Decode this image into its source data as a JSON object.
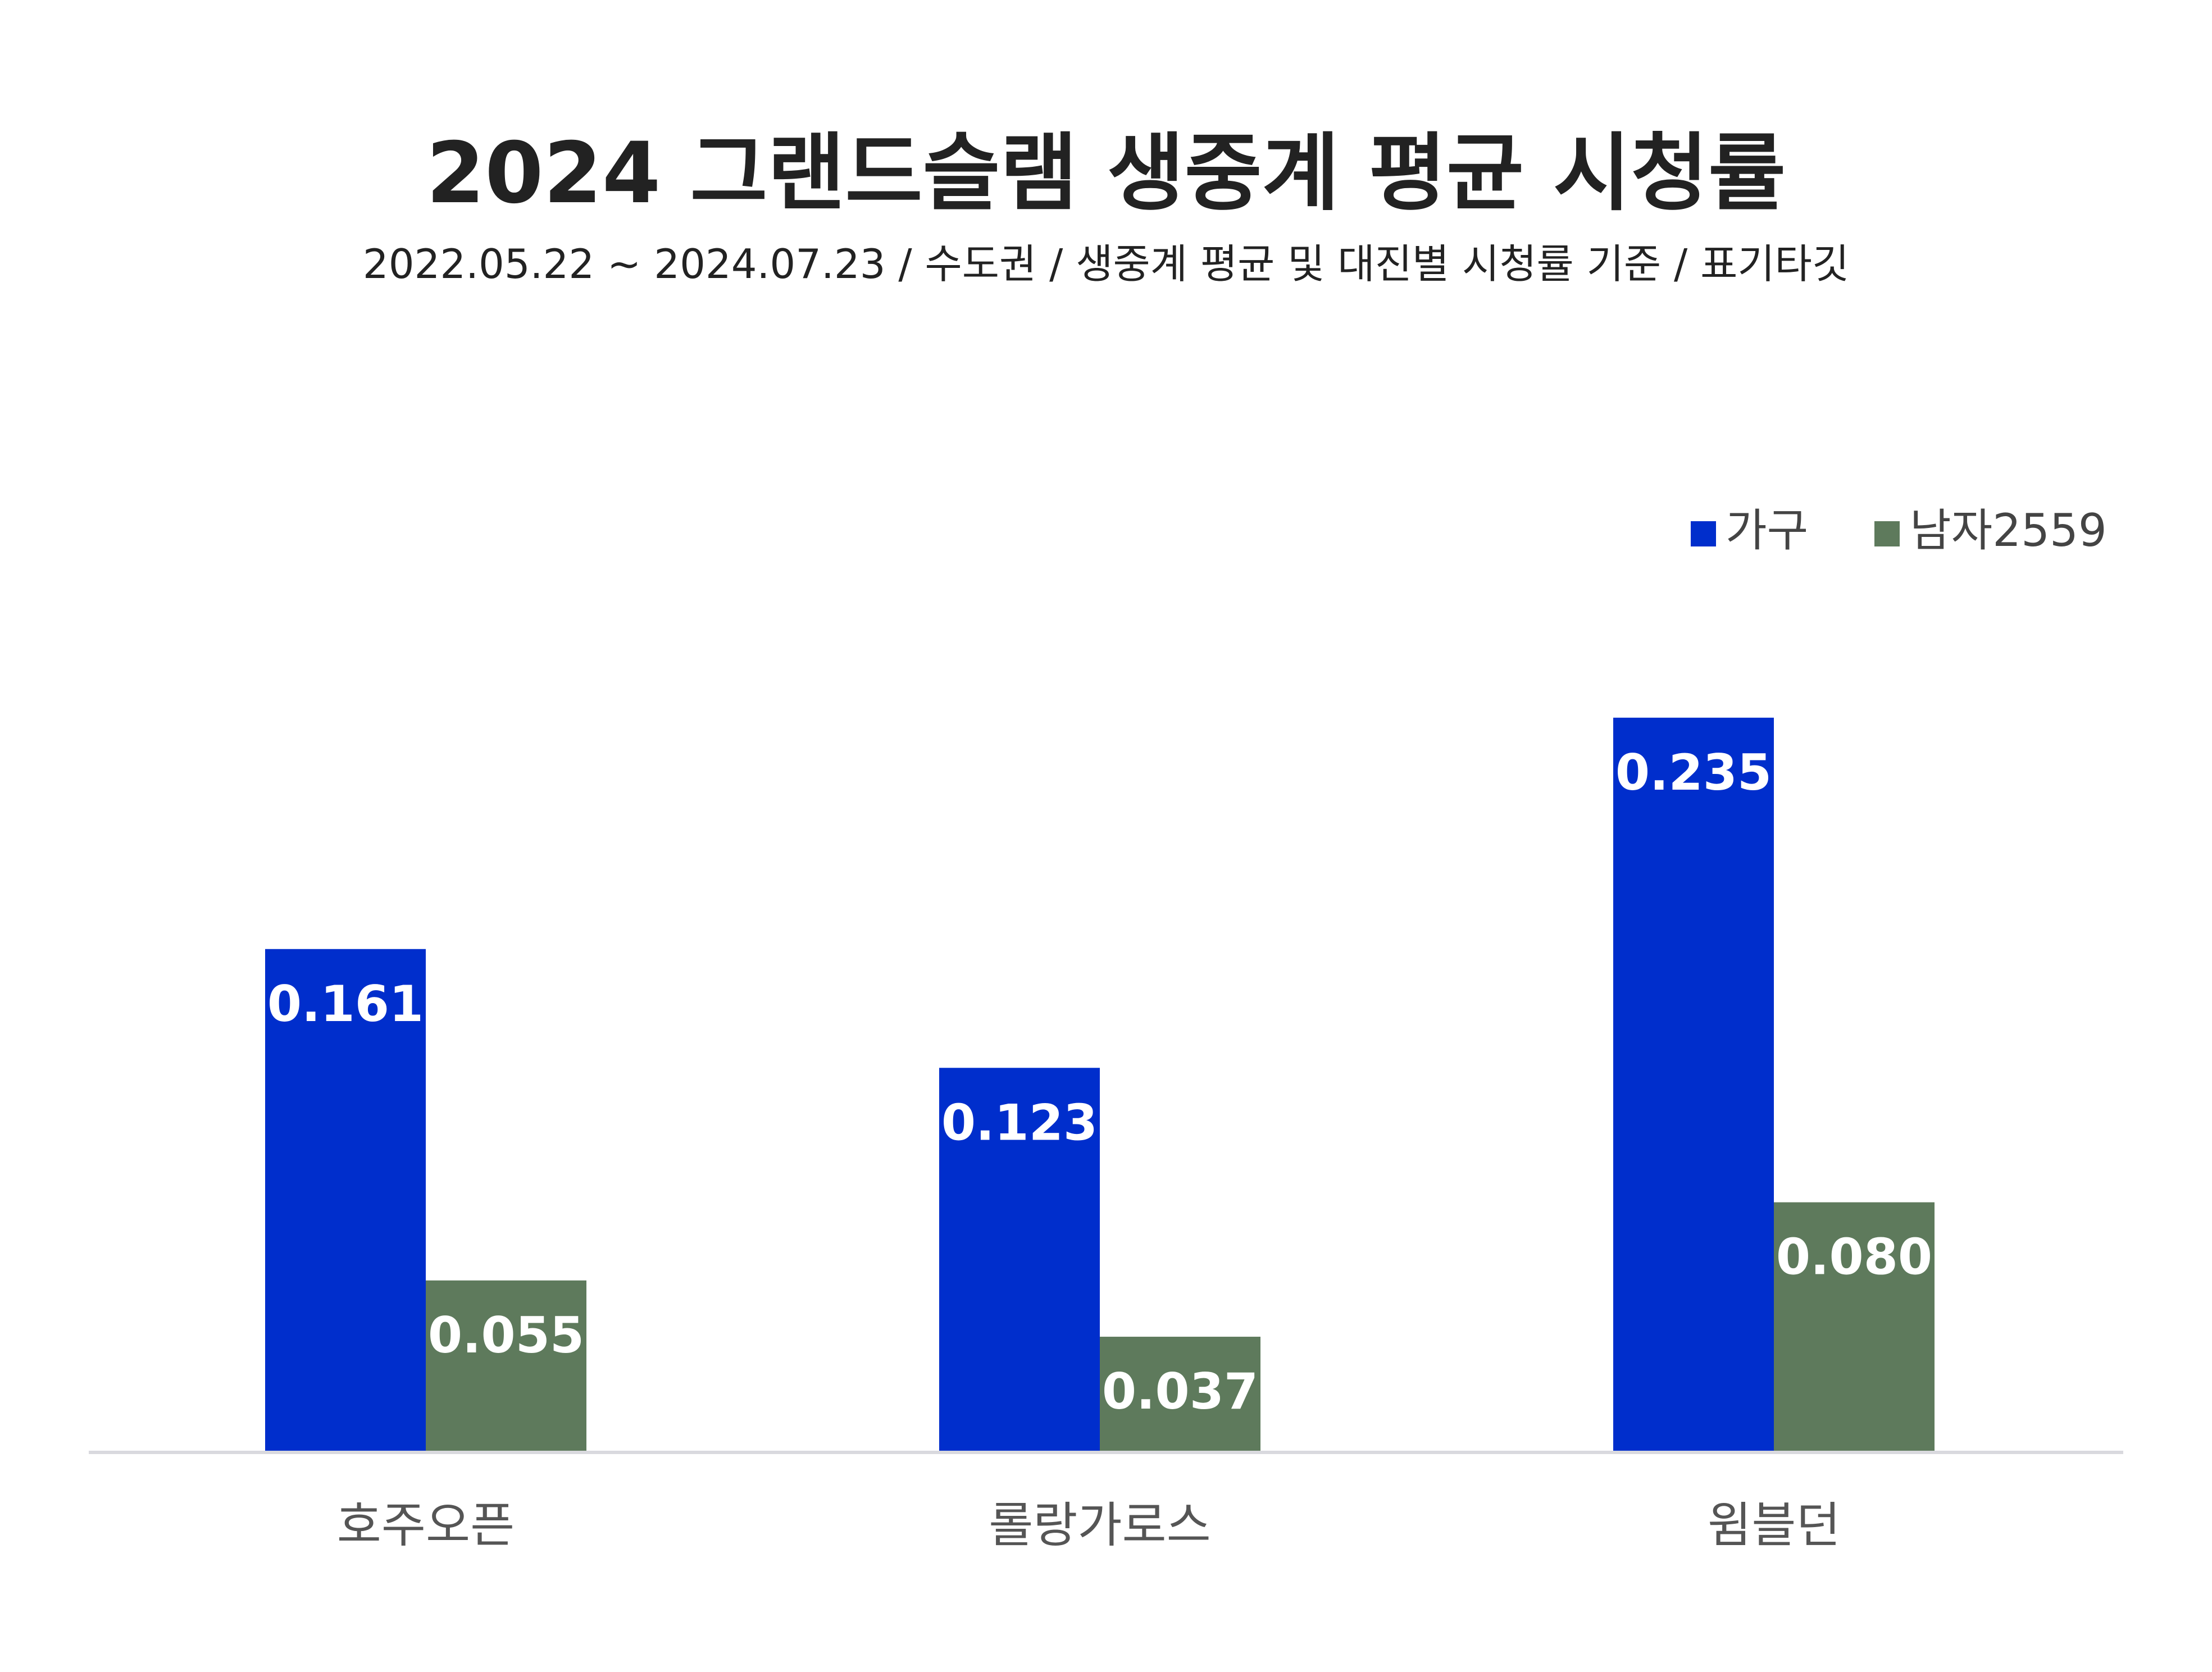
{
  "chart_data": {
    "type": "bar",
    "title": "2024 그랜드슬램 생중계 평균 시청률",
    "subtitle": "2022.05.22 ~ 2024.07.23 / 수도권 / 생중계 평균 및 대진별 시청률 기준 / 표기타깃",
    "categories": [
      "호주오픈",
      "롤랑가로스",
      "윔블던"
    ],
    "series": [
      {
        "name": "가구",
        "values": [
          0.161,
          0.123,
          0.235
        ],
        "labels": [
          "0.161",
          "0.123",
          "0.235"
        ],
        "color": "#002ECC"
      },
      {
        "name": "남자2559",
        "values": [
          0.055,
          0.037,
          0.08
        ],
        "labels": [
          "0.055",
          "0.037",
          "0.080"
        ],
        "color": "#5E7A5C"
      }
    ],
    "ylim": [
      0,
      0.24
    ],
    "grid": false,
    "legend_position": "top-right",
    "baseline_color": "#D9D9DE"
  }
}
